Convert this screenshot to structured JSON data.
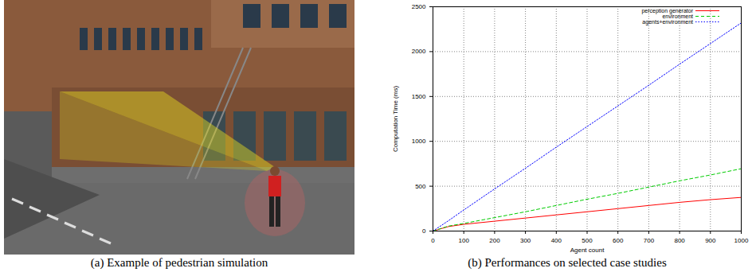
{
  "captions": [
    "(a) Example of pedestrian simulation",
    "(b) Performances on selected case studies"
  ],
  "chart_data": {
    "type": "line",
    "x_label": "Agent count",
    "y_label": "Computation Time (ms)",
    "x": [
      0,
      50,
      100,
      200,
      300,
      400,
      500,
      600,
      700,
      800,
      900,
      1000
    ],
    "series": [
      {
        "name": "perception generator",
        "color": "#ff0000",
        "line_style": "solid",
        "values": [
          0,
          50,
          75,
          110,
          145,
          180,
          215,
          250,
          285,
          320,
          350,
          375
        ]
      },
      {
        "name": "environment",
        "color": "#00cc00",
        "line_style": "dashed",
        "values": [
          0,
          55,
          85,
          150,
          215,
          285,
          355,
          420,
          490,
          560,
          625,
          695
        ]
      },
      {
        "name": "agents+environment",
        "color": "#0000ff",
        "line_style": "dotted",
        "values": [
          0,
          115,
          235,
          470,
          700,
          935,
          1165,
          1395,
          1625,
          1860,
          2090,
          2320
        ]
      }
    ],
    "xlim": [
      0,
      1000
    ],
    "xticks": [
      0,
      100,
      200,
      300,
      400,
      500,
      600,
      700,
      800,
      900,
      1000
    ],
    "ylim": [
      0,
      2500
    ],
    "yticks": [
      0,
      500,
      1000,
      1500,
      2000,
      2500
    ],
    "grid": true,
    "legend": "upper right"
  }
}
